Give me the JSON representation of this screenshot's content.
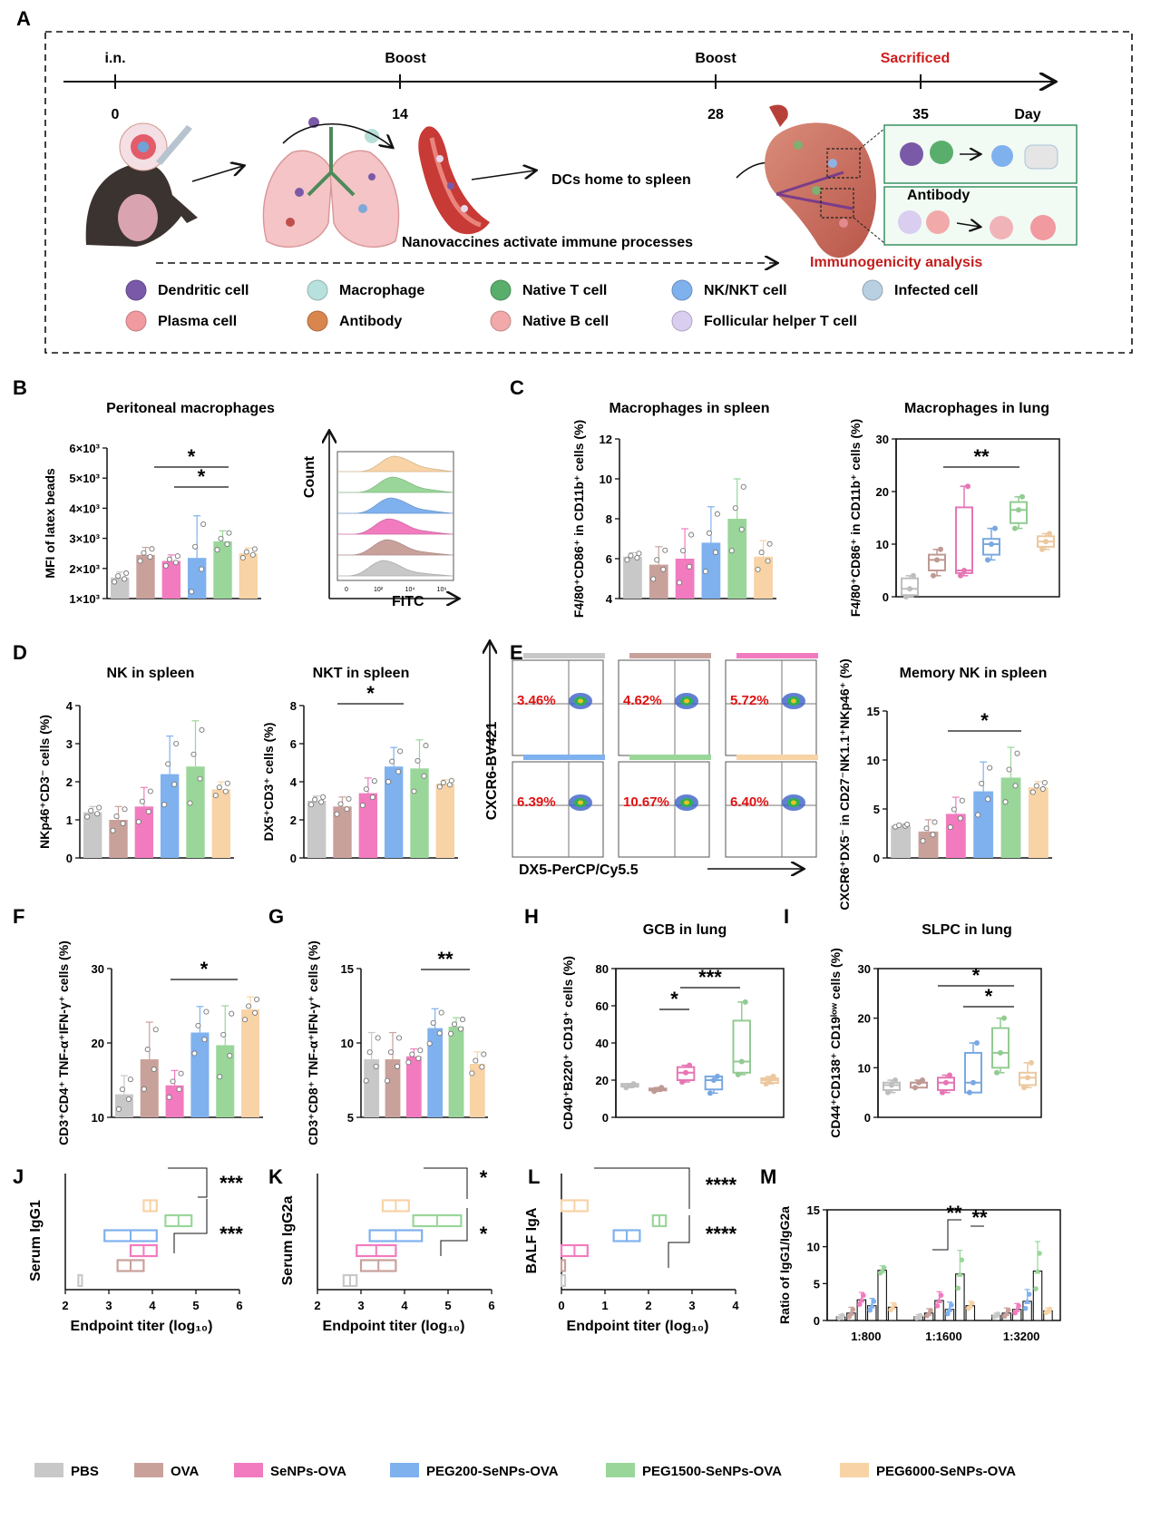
{
  "colors": {
    "PBS": "#c8c8c8",
    "OVA": "#c9a19b",
    "SeNPs-OVA": "#f27bbf",
    "PEG200-SeNPs-OVA": "#7fb1ee",
    "PEG1500-SeNPs-OVA": "#9ad69a",
    "PEG6000-SeNPs-OVA": "#f8d3a6"
  },
  "legend": [
    "PBS",
    "OVA",
    "SeNPs-OVA",
    "PEG200-SeNPs-OVA",
    "PEG1500-SeNPs-OVA",
    "PEG6000-SeNPs-OVA"
  ],
  "panelA": {
    "label": "A",
    "timeline": {
      "events": [
        {
          "day": "0",
          "event": "i.n."
        },
        {
          "day": "14",
          "event": "Boost"
        },
        {
          "day": "28",
          "event": "Boost"
        },
        {
          "day": "35",
          "event": "Sacrificed"
        }
      ],
      "axis_label": "Day"
    },
    "texts": {
      "dc_home": "DCs home to spleen",
      "activate": "Nanovaccines activate immune processes",
      "antibody": "Antibody",
      "analysis": "Immunogenicity  analysis"
    },
    "cell_legend": [
      {
        "name": "Dendritic cell",
        "icon": "dendritic-cell-icon"
      },
      {
        "name": "Macrophage",
        "icon": "macrophage-icon"
      },
      {
        "name": "Native T cell",
        "icon": "t-cell-icon"
      },
      {
        "name": "NK/NKT cell",
        "icon": "nk-cell-icon"
      },
      {
        "name": "Infected cell",
        "icon": "infected-cell-icon"
      },
      {
        "name": "Plasma cell",
        "icon": "plasma-cell-icon"
      },
      {
        "name": "Antibody",
        "icon": "antibody-icon"
      },
      {
        "name": "Native B cell",
        "icon": "b-cell-icon"
      },
      {
        "name": "Follicular helper T cell",
        "icon": "tfh-cell-icon"
      }
    ]
  },
  "flow": {
    "histogram_ylabel": "Count",
    "histogram_xlabel": "FITC",
    "histogram_ticks": [
      "0",
      "10²",
      "10⁴",
      "10⁶"
    ],
    "dot_ylabel": "CXCR6-BV421",
    "dot_xlabel": "DX5-PerCP/Cy5.5",
    "dot_percentages": [
      "3.46%",
      "4.62%",
      "5.72%",
      "6.39%",
      "10.67%",
      "6.40%"
    ]
  },
  "chart_data": [
    {
      "id": "B",
      "panel": "B",
      "type": "bar",
      "title": "Peritoneal macrophages",
      "ylabel": "MFI of latex beads",
      "ylim": [
        1000,
        6000
      ],
      "yticks": [
        "1×10³",
        "2×10³",
        "3×10³",
        "4×10³",
        "5×10³",
        "6×10³"
      ],
      "categories": [
        "PBS",
        "OVA",
        "SeNPs-OVA",
        "PEG200-SeNPs-OVA",
        "PEG1500-SeNPs-OVA",
        "PEG6000-SeNPs-OVA"
      ],
      "values": [
        1700,
        2450,
        2250,
        2350,
        2900,
        2500
      ],
      "errors": [
        180,
        250,
        200,
        1400,
        350,
        180
      ],
      "significance": [
        "*",
        "*"
      ]
    },
    {
      "id": "C1",
      "panel": "C",
      "type": "bar",
      "title": "Macrophages in spleen",
      "ylabel": "F4/80⁺CD86⁺ in CD11b⁺ cells (%)",
      "ylim": [
        4,
        12
      ],
      "yticks": [
        "4",
        "6",
        "8",
        "10",
        "12"
      ],
      "categories": [
        "PBS",
        "OVA",
        "SeNPs-OVA",
        "PEG200-SeNPs-OVA",
        "PEG1500-SeNPs-OVA",
        "PEG6000-SeNPs-OVA"
      ],
      "values": [
        6.1,
        5.7,
        6.0,
        6.8,
        8.0,
        6.1
      ],
      "errors": [
        0.2,
        0.9,
        1.5,
        1.8,
        2.0,
        0.8
      ]
    },
    {
      "id": "C2",
      "panel": "C",
      "type": "box",
      "title": "Macrophages in lung",
      "ylabel": "F4/80⁺CD86⁺ in CD11b⁺ cells (%)",
      "ylim": [
        0,
        30
      ],
      "yticks": [
        "0",
        "10",
        "20",
        "30"
      ],
      "categories": [
        "PBS",
        "OVA",
        "SeNPs-OVA",
        "PEG200-SeNPs-OVA",
        "PEG1500-SeNPs-OVA",
        "PEG6000-SeNPs-OVA"
      ],
      "boxes": [
        [
          0,
          0.3,
          1.5,
          3.5,
          4
        ],
        [
          4,
          5,
          7,
          8,
          9
        ],
        [
          4,
          4.5,
          5,
          17,
          21
        ],
        [
          7,
          8,
          10,
          11,
          13
        ],
        [
          13,
          14,
          16.5,
          18,
          19
        ],
        [
          9,
          9.5,
          10.5,
          11.5,
          12
        ]
      ],
      "significance": [
        "**"
      ]
    },
    {
      "id": "D1",
      "panel": "D",
      "type": "bar",
      "title": "NK in spleen",
      "ylabel": "NKp46⁺CD3⁻ cells (%)",
      "ylim": [
        0,
        4
      ],
      "yticks": [
        "0",
        "1",
        "2",
        "3",
        "4"
      ],
      "categories": [
        "PBS",
        "OVA",
        "SeNPs-OVA",
        "PEG200-SeNPs-OVA",
        "PEG1500-SeNPs-OVA",
        "PEG6000-SeNPs-OVA"
      ],
      "values": [
        1.2,
        1.0,
        1.35,
        2.2,
        2.4,
        1.8
      ],
      "errors": [
        0.15,
        0.35,
        0.5,
        1.0,
        1.2,
        0.2
      ]
    },
    {
      "id": "D2",
      "panel": "D",
      "type": "bar",
      "title": "NKT in spleen",
      "ylabel": "DX5⁺CD3⁺ cells (%)",
      "ylim": [
        0,
        8
      ],
      "yticks": [
        "0",
        "2",
        "4",
        "6",
        "8"
      ],
      "categories": [
        "PBS",
        "OVA",
        "SeNPs-OVA",
        "PEG200-SeNPs-OVA",
        "PEG1500-SeNPs-OVA",
        "PEG6000-SeNPs-OVA"
      ],
      "values": [
        3.0,
        2.7,
        3.4,
        4.8,
        4.7,
        3.9
      ],
      "errors": [
        0.25,
        0.5,
        0.8,
        1.0,
        1.5,
        0.2
      ],
      "significance": [
        "*"
      ]
    },
    {
      "id": "E",
      "panel": "E",
      "type": "bar",
      "title": "Memory NK in spleen",
      "ylabel": "CXCR6⁺DX5⁻ in CD27⁻NK1.1⁺NKp46⁺ (%)",
      "ylim": [
        0,
        15
      ],
      "yticks": [
        "0",
        "5",
        "10",
        "15"
      ],
      "categories": [
        "PBS",
        "OVA",
        "SeNPs-OVA",
        "PEG200-SeNPs-OVA",
        "PEG1500-SeNPs-OVA",
        "PEG6000-SeNPs-OVA"
      ],
      "values": [
        3.3,
        2.7,
        4.5,
        6.8,
        8.2,
        7.2
      ],
      "errors": [
        0.15,
        1.2,
        1.7,
        3.0,
        3.1,
        0.6
      ],
      "significance": [
        "*"
      ]
    },
    {
      "id": "F",
      "panel": "F",
      "type": "bar",
      "title": "",
      "ylabel": "CD3⁺CD4⁺ TNF-α⁺IFN-γ⁺ cells (%)",
      "ylim": [
        10,
        30
      ],
      "yticks": [
        "10",
        "20",
        "30"
      ],
      "categories": [
        "PBS",
        "OVA",
        "SeNPs-OVA",
        "PEG200-SeNPs-OVA",
        "PEG1500-SeNPs-OVA",
        "PEG6000-SeNPs-OVA"
      ],
      "values": [
        13.1,
        17.8,
        14.3,
        21.4,
        19.7,
        24.5
      ],
      "errors": [
        2.5,
        5.0,
        2.0,
        3.5,
        5.3,
        1.7
      ],
      "significance": [
        "*"
      ]
    },
    {
      "id": "G",
      "panel": "G",
      "type": "bar",
      "title": "",
      "ylabel": "CD3⁺CD8⁺ TNF-α⁺IFN-γ⁺ cells (%)",
      "ylim": [
        5,
        15
      ],
      "yticks": [
        "5",
        "10",
        "15"
      ],
      "categories": [
        "PBS",
        "OVA",
        "SeNPs-OVA",
        "PEG200-SeNPs-OVA",
        "PEG1500-SeNPs-OVA",
        "PEG6000-SeNPs-OVA"
      ],
      "values": [
        8.9,
        8.9,
        9.1,
        11.0,
        11.1,
        8.6
      ],
      "errors": [
        1.8,
        1.8,
        0.5,
        1.3,
        0.6,
        0.8
      ],
      "significance": [
        "**"
      ]
    },
    {
      "id": "H",
      "panel": "H",
      "type": "box",
      "title": "GCB in lung",
      "ylabel": "CD40⁺B220⁺ CD19⁺ cells (%)",
      "ylim": [
        0,
        80
      ],
      "yticks": [
        "0",
        "20",
        "40",
        "60",
        "80"
      ],
      "categories": [
        "PBS",
        "OVA",
        "SeNPs-OVA",
        "PEG200-SeNPs-OVA",
        "PEG1500-SeNPs-OVA",
        "PEG6000-SeNPs-OVA"
      ],
      "boxes": [
        [
          16,
          16.5,
          17,
          18,
          18
        ],
        [
          14,
          14.5,
          15,
          15.5,
          16
        ],
        [
          19,
          20,
          24,
          27,
          28
        ],
        [
          13,
          15,
          20,
          22,
          22
        ],
        [
          23,
          24,
          30,
          52,
          62
        ],
        [
          18,
          18.5,
          20,
          21,
          22
        ]
      ],
      "significance": [
        "***",
        "*"
      ]
    },
    {
      "id": "I",
      "panel": "I",
      "type": "box",
      "title": "SLPC in lung",
      "ylabel": "CD44⁺CD138⁺ CD19ˡᵒʷ cells (%)",
      "ylim": [
        0,
        30
      ],
      "yticks": [
        "0",
        "10",
        "20",
        "30"
      ],
      "categories": [
        "PBS",
        "OVA",
        "SeNPs-OVA",
        "PEG200-SeNPs-OVA",
        "PEG1500-SeNPs-OVA",
        "PEG6000-SeNPs-OVA"
      ],
      "boxes": [
        [
          5,
          5.5,
          6.5,
          7,
          7.5
        ],
        [
          6,
          6,
          7,
          7,
          7.5
        ],
        [
          5,
          5.5,
          7,
          8,
          8.5
        ],
        [
          5,
          5,
          7,
          13,
          15
        ],
        [
          9,
          10,
          13,
          18,
          20
        ],
        [
          6,
          6.5,
          8,
          9,
          11
        ]
      ],
      "significance": [
        "*",
        "*"
      ]
    },
    {
      "id": "J",
      "panel": "J",
      "type": "range",
      "title": "",
      "ylabel": "Serum  IgG1",
      "xlabel": "Endpoint titer (log₁₀)",
      "xlim": [
        2,
        6
      ],
      "xticks": [
        "2",
        "3",
        "4",
        "5",
        "6"
      ],
      "categories": [
        "PBS",
        "OVA",
        "SeNPs-OVA",
        "PEG200-SeNPs-OVA",
        "PEG1500-SeNPs-OVA",
        "PEG6000-SeNPs-OVA"
      ],
      "ranges": [
        [
          2.3,
          2.3
        ],
        [
          3.2,
          3.8
        ],
        [
          3.5,
          4.1
        ],
        [
          2.9,
          4.1
        ],
        [
          4.3,
          4.9
        ],
        [
          3.8,
          4.1
        ]
      ],
      "significance": [
        "***",
        "***"
      ]
    },
    {
      "id": "K",
      "panel": "K",
      "type": "range",
      "title": "",
      "ylabel": "Serum  IgG2a",
      "xlabel": "Endpoint titer (log₁₀)",
      "xlim": [
        2,
        6
      ],
      "xticks": [
        "2",
        "3",
        "4",
        "5",
        "6"
      ],
      "categories": [
        "PBS",
        "OVA",
        "SeNPs-OVA",
        "PEG200-SeNPs-OVA",
        "PEG1500-SeNPs-OVA",
        "PEG6000-SeNPs-OVA"
      ],
      "ranges": [
        [
          2.6,
          2.9
        ],
        [
          3.0,
          3.8
        ],
        [
          2.9,
          3.8
        ],
        [
          3.2,
          4.4
        ],
        [
          4.2,
          5.3
        ],
        [
          3.5,
          4.1
        ]
      ],
      "significance": [
        "*",
        "*"
      ]
    },
    {
      "id": "L",
      "panel": "L",
      "type": "range",
      "title": "",
      "ylabel": "BALF IgA",
      "xlabel": "Endpoint titer (log₁₀)",
      "xlim": [
        0,
        4
      ],
      "xticks": [
        "0",
        "1",
        "2",
        "3",
        "4"
      ],
      "categories": [
        "PBS",
        "OVA",
        "SeNPs-OVA",
        "PEG200-SeNPs-OVA",
        "PEG1500-SeNPs-OVA",
        "PEG6000-SeNPs-OVA"
      ],
      "ranges": [
        [
          0,
          0.05
        ],
        [
          0,
          0.08
        ],
        [
          0,
          0.6
        ],
        [
          1.2,
          1.8
        ],
        [
          2.1,
          2.4
        ],
        [
          0,
          0.6
        ]
      ],
      "significance": [
        "****",
        "****"
      ]
    },
    {
      "id": "M",
      "panel": "M",
      "type": "grouped-bar",
      "title": "",
      "ylabel": "Ratio of IgG1/IgG2a",
      "ylim": [
        0,
        15
      ],
      "yticks": [
        "0",
        "5",
        "10",
        "15"
      ],
      "categories": [
        "1:800",
        "1:1600",
        "1:3200"
      ],
      "series": [
        {
          "name": "PBS",
          "values": [
            0.5,
            0.5,
            0.7
          ],
          "errors": [
            0.3,
            0.3,
            0.3
          ]
        },
        {
          "name": "OVA",
          "values": [
            1.0,
            1.0,
            1.0
          ],
          "errors": [
            0.8,
            0.6,
            0.7
          ]
        },
        {
          "name": "SeNPs-OVA",
          "values": [
            2.8,
            2.7,
            1.5
          ],
          "errors": [
            1.0,
            1.2,
            0.8
          ]
        },
        {
          "name": "PEG200-SeNPs-OVA",
          "values": [
            2.0,
            1.5,
            2.6
          ],
          "errors": [
            1.0,
            1.0,
            1.6
          ]
        },
        {
          "name": "PEG1500-SeNPs-OVA",
          "values": [
            6.8,
            6.3,
            6.7
          ],
          "errors": [
            0.6,
            3.2,
            4.0
          ]
        },
        {
          "name": "PEG6000-SeNPs-OVA",
          "values": [
            1.8,
            2.0,
            1.3
          ],
          "errors": [
            0.6,
            0.6,
            0.4
          ]
        }
      ],
      "significance": [
        "**",
        "**"
      ]
    }
  ]
}
